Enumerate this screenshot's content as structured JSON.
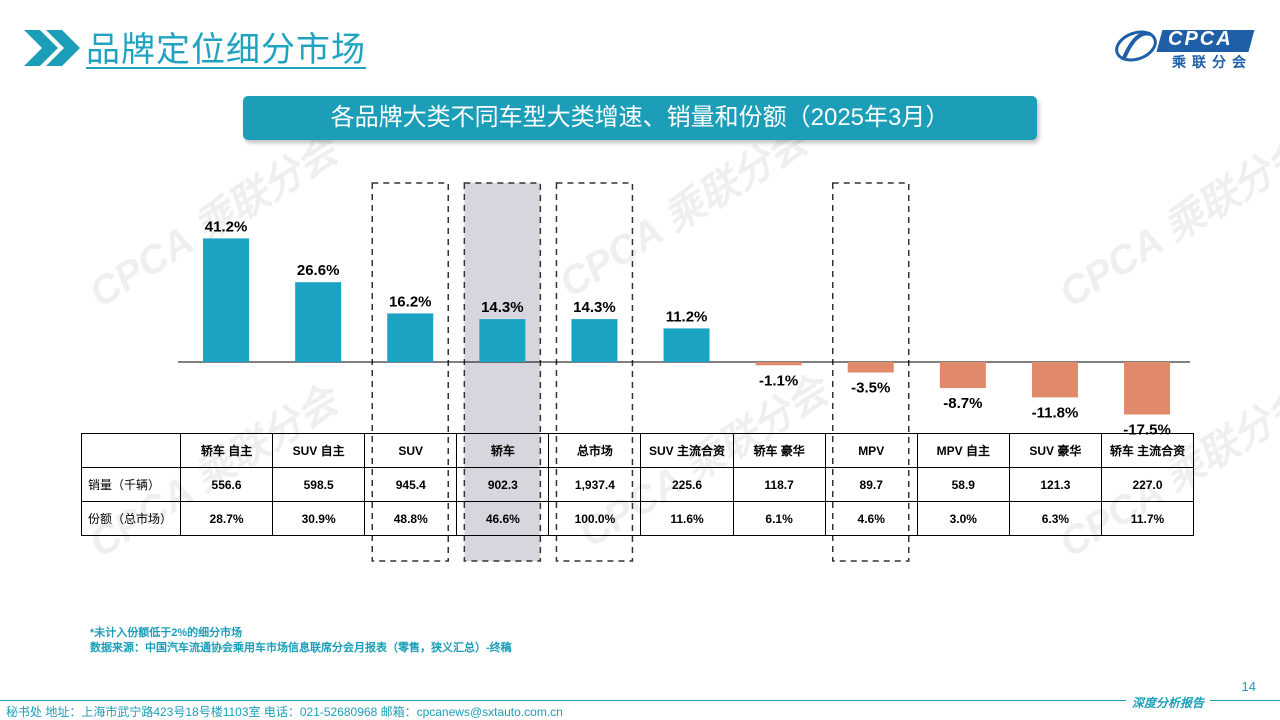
{
  "header": {
    "title": "品牌定位细分市场",
    "logo_text": "CPCA",
    "logo_cn": "乘联分会"
  },
  "watermark": {
    "text": "CPCA 乘联分会"
  },
  "colors": {
    "positive": "#1aa3c3",
    "negative": "#e08a6b",
    "highlight": "#d7d6de",
    "accent": "#1c9eb8"
  },
  "chart_data": {
    "type": "bar",
    "title": "各品牌大类不同车型大类增速、销量和份额（2025年3月）",
    "categories": [
      "轿车 自主",
      "SUV 自主",
      "SUV",
      "轿车",
      "总市场",
      "SUV 主流合资",
      "轿车 豪华",
      "MPV",
      "MPV 自主",
      "SUV 豪华",
      "轿车 主流合资"
    ],
    "values": [
      41.2,
      26.6,
      16.2,
      14.3,
      14.3,
      11.2,
      -1.1,
      -3.5,
      -8.7,
      -11.8,
      -17.5
    ],
    "labels": [
      "41.2%",
      "26.6%",
      "16.2%",
      "14.3%",
      "14.3%",
      "11.2%",
      "-1.1%",
      "-3.5%",
      "-8.7%",
      "-11.8%",
      "-17.5%"
    ],
    "unit": "%",
    "boxed_categories": [
      "SUV",
      "轿车",
      "总市场",
      "MPV"
    ],
    "shaded_category": "轿车",
    "table": {
      "rows": [
        {
          "label": "销量（千辆）",
          "values": [
            "556.6",
            "598.5",
            "945.4",
            "902.3",
            "1,937.4",
            "225.6",
            "118.7",
            "89.7",
            "58.9",
            "121.3",
            "227.0"
          ]
        },
        {
          "label": "份额（总市场）",
          "values": [
            "28.7%",
            "30.9%",
            "48.8%",
            "46.6%",
            "100.0%",
            "11.6%",
            "6.1%",
            "4.6%",
            "3.0%",
            "6.3%",
            "11.7%"
          ]
        }
      ]
    }
  },
  "notes": {
    "line1": "*未计入份额低于2%的细分市场",
    "line2": "数据来源：中国汽车流通协会乘用车市场信息联席分会月报表（零售，狭义汇总）-终稿"
  },
  "footer": {
    "address": "秘书处   地址：上海市武宁路423号18号楼1103室  电话：021-52680968   邮箱：cpcanews@sxtauto.com.cn",
    "right_label": "深度分析报告",
    "page": "14"
  }
}
